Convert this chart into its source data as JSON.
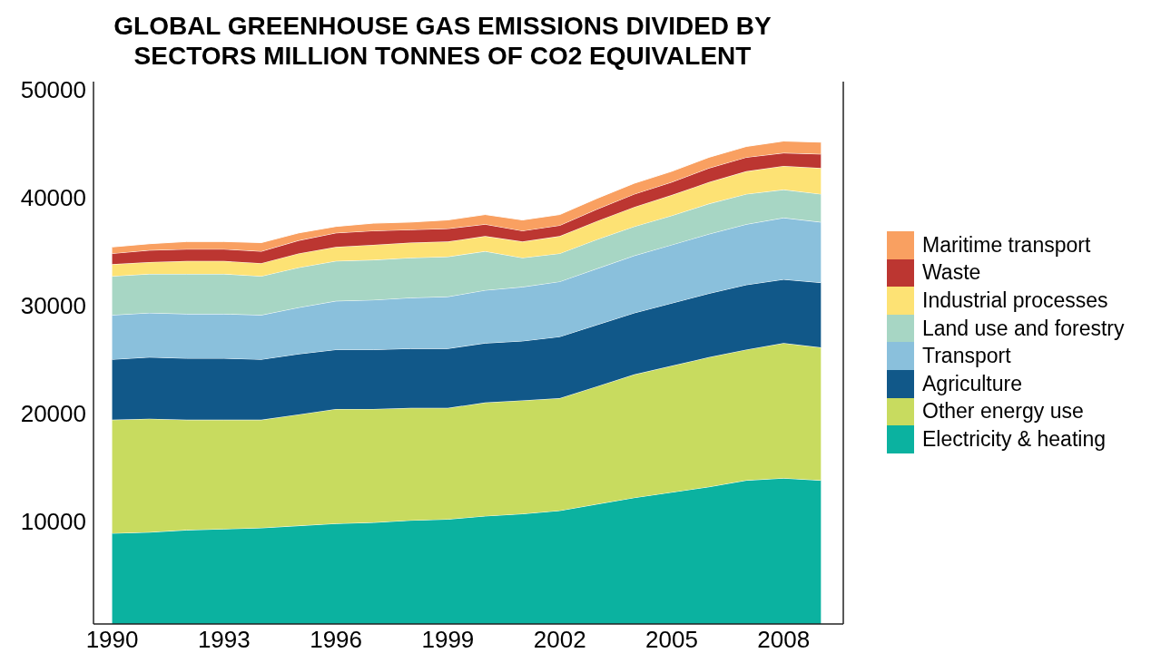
{
  "chart_data": {
    "type": "area",
    "title": "GLOBAL GREENHOUSE GAS EMISSIONS DIVIDED BY SECTORS MILLION TONNES OF CO2 EQUIVALENT",
    "stacked": true,
    "legend": "right",
    "x": [
      1990,
      1991,
      1992,
      1993,
      1994,
      1995,
      1996,
      1997,
      1998,
      1999,
      2000,
      2001,
      2002,
      2003,
      2004,
      2005,
      2006,
      2007,
      2008,
      2009
    ],
    "xlim": [
      1989.5,
      2009.6
    ],
    "xticks": [
      1990,
      1993,
      1996,
      1999,
      2002,
      2005,
      2008
    ],
    "ylim": [
      500,
      50700
    ],
    "yticks": [
      10000,
      20000,
      30000,
      40000,
      50000
    ],
    "series": [
      {
        "name": "Electricity & heating",
        "color": "#0bb2a0",
        "values": [
          8900,
          9000,
          9200,
          9300,
          9400,
          9600,
          9800,
          9900,
          10100,
          10200,
          10500,
          10700,
          11000,
          11600,
          12200,
          12700,
          13200,
          13800,
          14000,
          13800
        ]
      },
      {
        "name": "Other energy use",
        "color": "#c8db5f",
        "values": [
          10500,
          10500,
          10200,
          10100,
          10000,
          10300,
          10600,
          10500,
          10400,
          10300,
          10500,
          10500,
          10400,
          10900,
          11400,
          11700,
          12000,
          12100,
          12500,
          12300
        ]
      },
      {
        "name": "Agriculture",
        "color": "#115889",
        "values": [
          5600,
          5700,
          5700,
          5700,
          5600,
          5600,
          5500,
          5500,
          5500,
          5500,
          5500,
          5500,
          5700,
          5700,
          5700,
          5800,
          5900,
          6000,
          5900,
          6000
        ]
      },
      {
        "name": "Transport",
        "color": "#8ac0dc",
        "values": [
          4100,
          4100,
          4100,
          4100,
          4100,
          4300,
          4500,
          4600,
          4700,
          4800,
          4900,
          5000,
          5100,
          5200,
          5300,
          5400,
          5500,
          5600,
          5700,
          5600
        ]
      },
      {
        "name": "Land use and forestry",
        "color": "#a7d6c4",
        "values": [
          3600,
          3600,
          3700,
          3700,
          3600,
          3700,
          3700,
          3700,
          3700,
          3700,
          3600,
          2700,
          2600,
          2700,
          2700,
          2700,
          2800,
          2800,
          2600,
          2600
        ]
      },
      {
        "name": "Industrial processes",
        "color": "#fde274",
        "values": [
          1100,
          1100,
          1200,
          1200,
          1200,
          1300,
          1300,
          1400,
          1400,
          1400,
          1400,
          1500,
          1600,
          1700,
          1800,
          1900,
          2000,
          2100,
          2200,
          2400
        ]
      },
      {
        "name": "Waste",
        "color": "#bc3631",
        "values": [
          1000,
          1100,
          1100,
          1100,
          1100,
          1200,
          1300,
          1300,
          1200,
          1200,
          1100,
          1000,
          1000,
          1100,
          1200,
          1200,
          1300,
          1300,
          1200,
          1300
        ]
      },
      {
        "name": "Maritime transport",
        "color": "#f9a061",
        "values": [
          600,
          600,
          700,
          700,
          800,
          700,
          600,
          700,
          700,
          800,
          900,
          1000,
          1000,
          1000,
          1000,
          1000,
          1000,
          1000,
          1100,
          1100
        ]
      }
    ]
  }
}
